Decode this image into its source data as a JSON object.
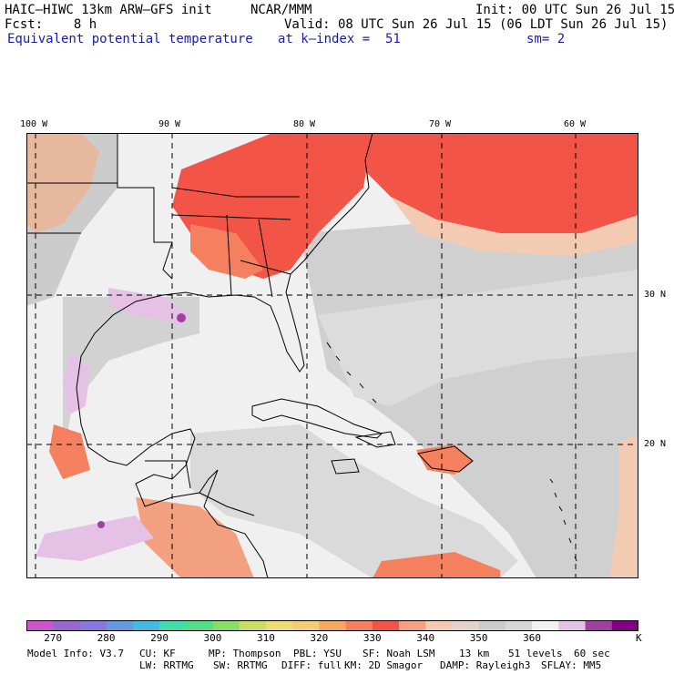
{
  "header": {
    "model": "HAIC–HIWC 13km ARW–GFS init",
    "org": "NCAR/MMM",
    "init": "Init: 00 UTC Sun 26 Jul 15",
    "fcst": "Fcst:    8 h",
    "valid": "Valid: 08 UTC Sun 26 Jul 15 (06 LDT Sun 26 Jul 15)",
    "field": "Equivalent potential temperature",
    "level": "at k–index =  51",
    "smooth": "sm= 2"
  },
  "map": {
    "lon_labels": [
      "100 W",
      "90 W",
      "80 W",
      "70 W",
      "60 W"
    ],
    "lat_labels": [
      "30 N",
      "20 N"
    ]
  },
  "colorbar": {
    "colors": [
      "#cc55cc",
      "#9966cc",
      "#8877dd",
      "#6699dd",
      "#44bbdd",
      "#44ddaa",
      "#55dd88",
      "#88dd66",
      "#ccdd66",
      "#eedd77",
      "#f2cc77",
      "#f5a860",
      "#f58060",
      "#f25548",
      "#f5a080",
      "#f2cbb2",
      "#e3d3c8",
      "#cccccc",
      "#d7d7d7",
      "#f2f2f2",
      "#e5c2e5",
      "#a040a0",
      "#800080"
    ],
    "ticks": [
      "270",
      "280",
      "290",
      "300",
      "310",
      "320",
      "330",
      "340",
      "350",
      "360"
    ],
    "unit": "K"
  },
  "footer": {
    "line1": [
      "Model Info: V3.7",
      "CU: KF",
      "MP: Thompson",
      "PBL: YSU",
      "SF: Noah LSM",
      "13 km",
      "51 levels",
      "60 sec"
    ],
    "line2": [
      "LW: RRTMG",
      "SW: RRTMG",
      "DIFF: full",
      "KM: 2D Smagor",
      "DAMP: Rayleigh3",
      "SFLAY: MM5"
    ]
  }
}
